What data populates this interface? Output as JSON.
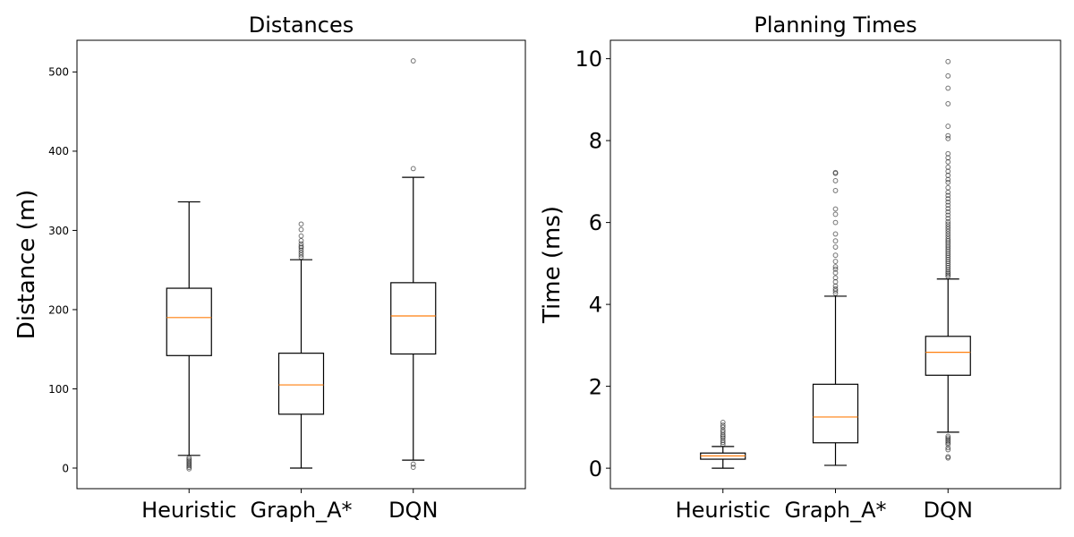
{
  "colors": {
    "background": "#ffffff",
    "axis": "#000000",
    "median": "#ff7f0e",
    "box": "#000000",
    "outlier": "#000000"
  },
  "chart_data": [
    {
      "type": "boxplot",
      "title": "Distances",
      "xlabel": "",
      "ylabel": "Distance (m)",
      "ylim": [
        -26,
        540
      ],
      "yticks": [
        0,
        100,
        200,
        300,
        400,
        500
      ],
      "yticks_fontsize": "small",
      "categories": [
        "Heuristic",
        "Graph_A*",
        "DQN"
      ],
      "boxes": [
        {
          "whisker_low": 16,
          "q1": 142,
          "median": 190,
          "q3": 227,
          "whisker_high": 336,
          "outliers": [
            -1,
            1,
            3,
            5,
            7,
            9,
            11,
            13
          ]
        },
        {
          "whisker_low": 0,
          "q1": 68,
          "median": 105,
          "q3": 145,
          "whisker_high": 263,
          "outliers": [
            266,
            269,
            272,
            275,
            278,
            280,
            283,
            287,
            293,
            301,
            308
          ]
        },
        {
          "whisker_low": 10,
          "q1": 144,
          "median": 192,
          "q3": 234,
          "whisker_high": 367,
          "outliers": [
            1,
            5,
            378,
            514
          ]
        }
      ]
    },
    {
      "type": "boxplot",
      "title": "Planning Times",
      "xlabel": "",
      "ylabel": "Time (ms)",
      "ylim": [
        -0.5,
        10.45
      ],
      "yticks": [
        0,
        2,
        4,
        6,
        8,
        10
      ],
      "yticks_fontsize": "large",
      "categories": [
        "Heuristic",
        "Graph_A*",
        "DQN"
      ],
      "boxes": [
        {
          "whisker_low": 0.0,
          "q1": 0.22,
          "median": 0.3,
          "q3": 0.37,
          "whisker_high": 0.53,
          "outliers": [
            0.58,
            0.63,
            0.68,
            0.74,
            0.78,
            0.82,
            0.88,
            0.93,
            1.0,
            1.05,
            1.12
          ]
        },
        {
          "whisker_low": 0.07,
          "q1": 0.62,
          "median": 1.25,
          "q3": 2.05,
          "whisker_high": 4.2,
          "outliers": [
            4.27,
            4.33,
            4.38,
            4.45,
            4.55,
            4.65,
            4.77,
            4.86,
            4.92,
            5.05,
            5.2,
            5.4,
            5.55,
            5.72,
            6.0,
            6.2,
            6.33,
            6.78,
            7.02,
            7.2,
            7.22
          ]
        },
        {
          "whisker_low": 0.88,
          "q1": 2.27,
          "median": 2.83,
          "q3": 3.22,
          "whisker_high": 4.62,
          "outliers": [
            0.25,
            0.28,
            0.45,
            0.5,
            0.58,
            0.62,
            0.66,
            0.7,
            0.74,
            0.78,
            4.68,
            4.72,
            4.76,
            4.8,
            4.85,
            4.9,
            4.95,
            5.0,
            5.05,
            5.1,
            5.15,
            5.2,
            5.25,
            5.3,
            5.35,
            5.4,
            5.45,
            5.5,
            5.55,
            5.6,
            5.66,
            5.72,
            5.78,
            5.84,
            5.9,
            5.96,
            6.02,
            6.1,
            6.18,
            6.26,
            6.34,
            6.42,
            6.5,
            6.58,
            6.66,
            6.74,
            6.85,
            6.98,
            7.05,
            7.15,
            7.25,
            7.35,
            7.48,
            7.58,
            7.68,
            8.05,
            8.12,
            8.35,
            8.9,
            9.28,
            9.58,
            9.93
          ]
        }
      ]
    }
  ]
}
